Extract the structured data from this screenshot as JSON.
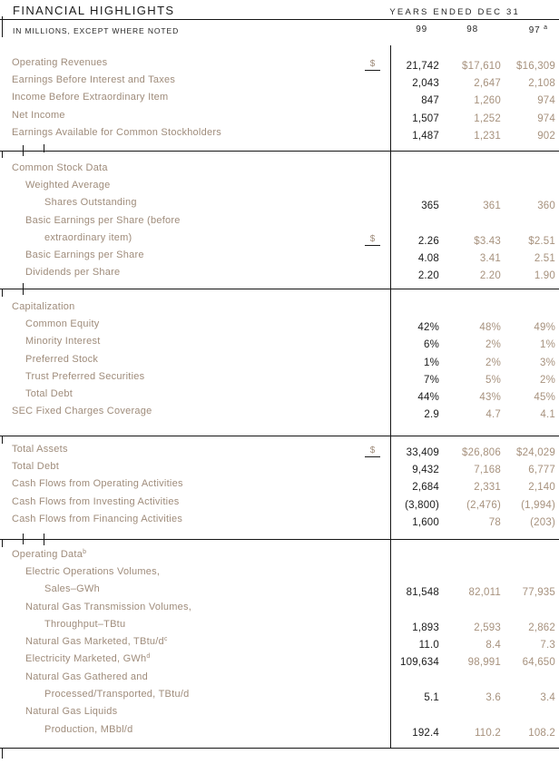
{
  "header": {
    "title": "FINANCIAL HIGHLIGHTS",
    "period_label": "YEARS ENDED DEC 31",
    "units_note": "IN MILLIONS, EXCEPT WHERE NOTED",
    "columns": [
      "99",
      "98",
      "97"
    ],
    "col97_sup": "a"
  },
  "colors": {
    "background": "#FFFFFF",
    "label_tan": "#9F8C7B",
    "value_light": "#A7927E",
    "value_dark": "#1B1B1B",
    "rule": "#161616"
  },
  "table": {
    "blocks": [
      {
        "rows": [
          {
            "label": "Operating Revenues",
            "indent": 0,
            "dollar": "$",
            "v99": "21,742",
            "v98": "$17,610",
            "v97": "$16,309"
          },
          {
            "label": "Earnings Before Interest and Taxes",
            "indent": 0,
            "v99": "2,043",
            "v98": "2,647",
            "v97": "2,108"
          },
          {
            "label": "Income Before Extraordinary Item",
            "indent": 0,
            "v99": "847",
            "v98": "1,260",
            "v97": "974"
          },
          {
            "label": "Net Income",
            "indent": 0,
            "v99": "1,507",
            "v98": "1,252",
            "v97": "974"
          },
          {
            "label": "Earnings Available for Common Stockholders",
            "indent": 0,
            "v99": "1,487",
            "v98": "1,231",
            "v97": "902"
          }
        ]
      },
      {
        "rows": [
          {
            "label": "Common Stock Data",
            "indent": 0
          },
          {
            "label": "Weighted Average",
            "indent": 1
          },
          {
            "label": "Shares Outstanding",
            "indent": 2,
            "v99": "365",
            "v98": "361",
            "v97": "360"
          },
          {
            "label": "Basic Earnings per Share (before",
            "indent": 1
          },
          {
            "label": "extraordinary item)",
            "indent": 2,
            "dollar": "$",
            "v99": "2.26",
            "v98": "$3.43",
            "v97": "$2.51"
          },
          {
            "label": "Basic Earnings per Share",
            "indent": 1,
            "v99": "4.08",
            "v98": "3.41",
            "v97": "2.51"
          },
          {
            "label": "Dividends per Share",
            "indent": 1,
            "v99": "2.20",
            "v98": "2.20",
            "v97": "1.90"
          }
        ]
      },
      {
        "rows": [
          {
            "label": "Capitalization",
            "indent": 0
          },
          {
            "label": "Common Equity",
            "indent": 1,
            "v99": "42%",
            "v98": "48%",
            "v97": "49%"
          },
          {
            "label": "Minority Interest",
            "indent": 1,
            "v99": "6%",
            "v98": "2%",
            "v97": "1%"
          },
          {
            "label": "Preferred Stock",
            "indent": 1,
            "v99": "1%",
            "v98": "2%",
            "v97": "3%"
          },
          {
            "label": "Trust Preferred Securities",
            "indent": 1,
            "v99": "7%",
            "v98": "5%",
            "v97": "2%"
          },
          {
            "label": "Total Debt",
            "indent": 1,
            "v99": "44%",
            "v98": "43%",
            "v97": "45%"
          },
          {
            "label": "SEC Fixed Charges Coverage",
            "indent": 0,
            "v99": "2.9",
            "v98": "4.7",
            "v97": "4.1"
          }
        ]
      },
      {
        "rows": [
          {
            "label": "Total Assets",
            "indent": 0,
            "dollar": "$",
            "v99": "33,409",
            "v98": "$26,806",
            "v97": "$24,029"
          },
          {
            "label": "Total Debt",
            "indent": 0,
            "v99": "9,432",
            "v98": "7,168",
            "v97": "6,777"
          },
          {
            "label": "Cash Flows from Operating Activities",
            "indent": 0,
            "v99": "2,684",
            "v98": "2,331",
            "v97": "2,140"
          },
          {
            "label": "Cash Flows from Investing Activities",
            "indent": 0,
            "v99": "(3,800)",
            "v98": "(2,476)",
            "v97": "(1,994)"
          },
          {
            "label": "Cash Flows from Financing Activities",
            "indent": 0,
            "v99": "1,600",
            "v98": "78",
            "v97": "(203)"
          }
        ]
      },
      {
        "rows": [
          {
            "label": "Operating Data",
            "sup": "b",
            "indent": 0
          },
          {
            "label": "Electric Operations Volumes,",
            "indent": 1
          },
          {
            "label": "Sales–GWh",
            "indent": 2,
            "v99": "81,548",
            "v98": "82,011",
            "v97": "77,935"
          },
          {
            "label": "Natural Gas Transmission Volumes,",
            "indent": 1
          },
          {
            "label": "Throughput–TBtu",
            "indent": 2,
            "v99": "1,893",
            "v98": "2,593",
            "v97": "2,862"
          },
          {
            "label": "Natural Gas Marketed, TBtu/d",
            "sup": "c",
            "indent": 1,
            "v99": "11.0",
            "v98": "8.4",
            "v97": "7.3"
          },
          {
            "label": "Electricity Marketed, GWh",
            "sup": "d",
            "indent": 1,
            "v99": "109,634",
            "v98": "98,991",
            "v97": "64,650"
          },
          {
            "label": "Natural Gas Gathered and",
            "indent": 1
          },
          {
            "label": "Processed/Transported, TBtu/d",
            "indent": 2,
            "v99": "5.1",
            "v98": "3.6",
            "v97": "3.4"
          },
          {
            "label": "Natural Gas Liquids",
            "indent": 1
          },
          {
            "label": "Production, MBbl/d",
            "indent": 2,
            "v99": "192.4",
            "v98": "110.2",
            "v97": "108.2"
          }
        ]
      }
    ]
  }
}
